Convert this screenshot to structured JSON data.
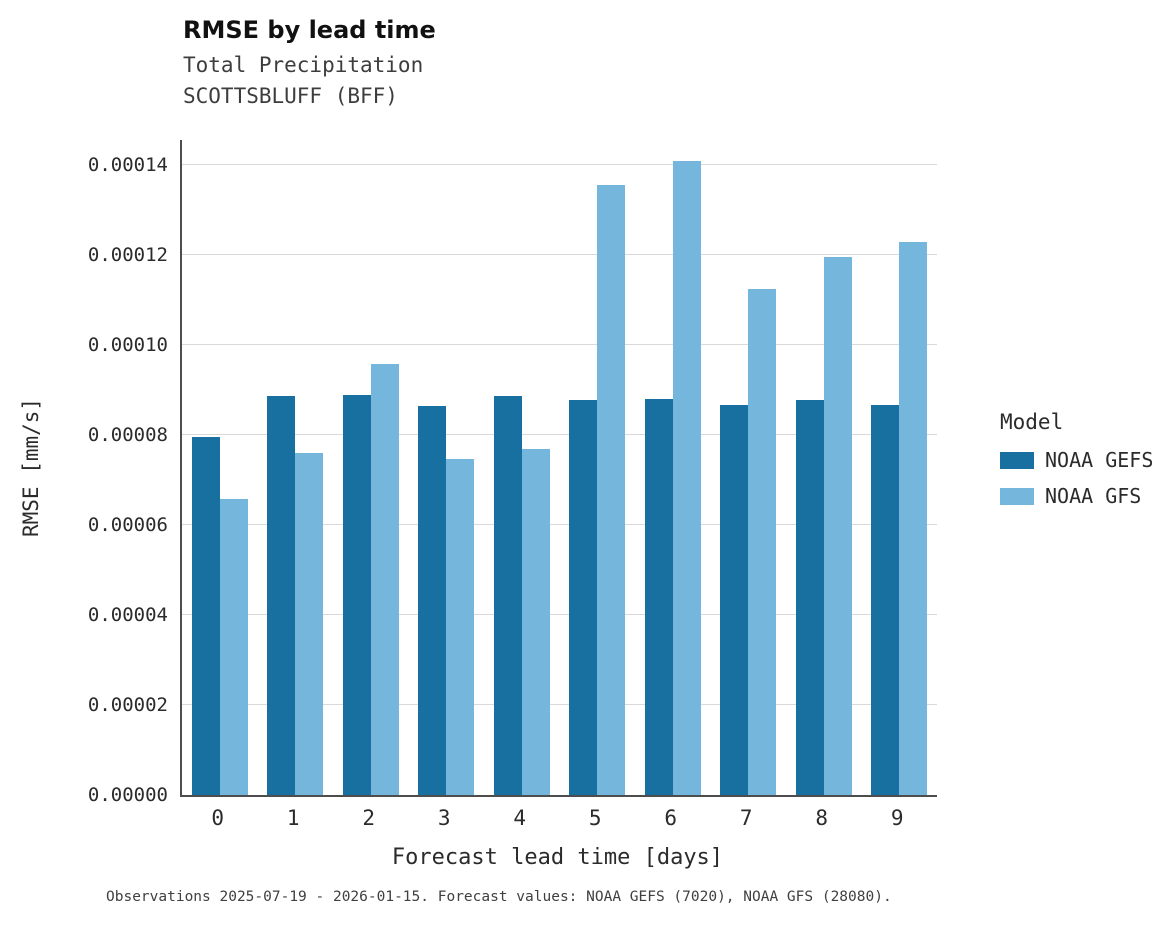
{
  "chart": {
    "title": "RMSE by lead time",
    "subtitle1": "Total Precipitation",
    "subtitle2": "SCOTTSBLUFF (BFF)",
    "caption": "Observations 2025-07-19 - 2026-01-15. Forecast values: NOAA GEFS (7020), NOAA GFS (28080)."
  },
  "chart_data": {
    "type": "bar",
    "title": "RMSE by lead time",
    "subtitle": [
      "Total Precipitation",
      "SCOTTSBLUFF (BFF)"
    ],
    "categories": [
      "0",
      "1",
      "2",
      "3",
      "4",
      "5",
      "6",
      "7",
      "8",
      "9"
    ],
    "series": [
      {
        "name": "NOAA GEFS",
        "color": "#17709f",
        "values": [
          7.95e-05,
          8.88e-05,
          8.9e-05,
          8.64e-05,
          8.88e-05,
          8.77e-05,
          8.81e-05,
          8.68e-05,
          8.79e-05,
          8.68e-05
        ]
      },
      {
        "name": "NOAA GFS",
        "color": "#74b6dc",
        "values": [
          6.59e-05,
          7.61e-05,
          9.57e-05,
          7.46e-05,
          7.7e-05,
          0.0001355,
          0.0001409,
          0.0001124,
          0.0001195,
          0.0001229
        ]
      }
    ],
    "xlabel": "Forecast lead time [days]",
    "ylabel": "RMSE [mm/s]",
    "ylim": [
      0,
      0.0001456
    ],
    "yticks": [
      0,
      2e-05,
      4e-05,
      6e-05,
      8e-05,
      0.0001,
      0.00012,
      0.00014
    ],
    "ytick_labels": [
      "0.00000",
      "0.00002",
      "0.00004",
      "0.00006",
      "0.00008",
      "0.00010",
      "0.00012",
      "0.00014"
    ],
    "legend_title": "Model",
    "legend_position": "right",
    "grid": "horizontal"
  }
}
